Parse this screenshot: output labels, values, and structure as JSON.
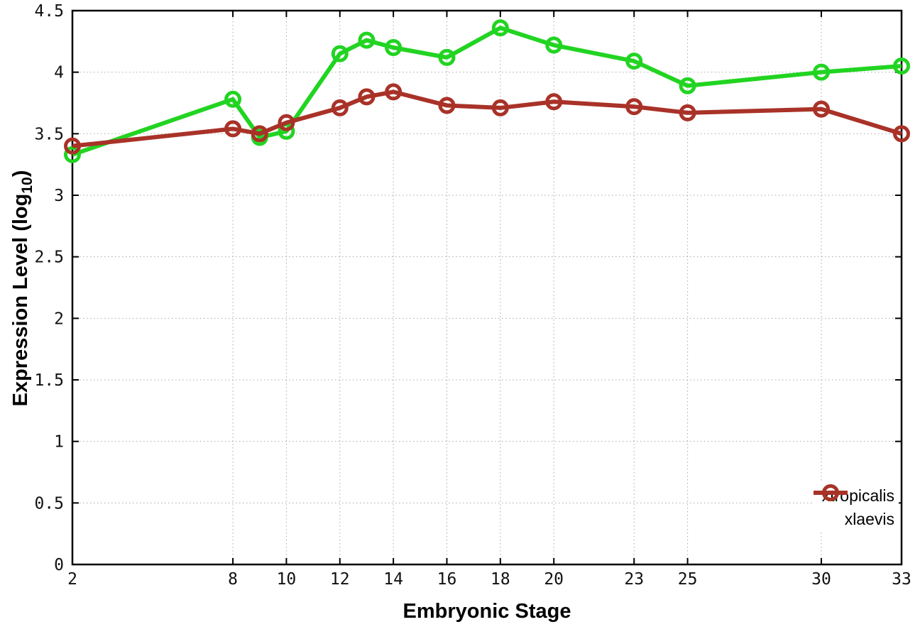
{
  "chart_data": {
    "type": "line",
    "title": "",
    "xlabel": "Embryonic Stage",
    "ylabel": {
      "prefix": "Expression Level (log",
      "sub": "10",
      "suffix": ")"
    },
    "xlim": [
      2,
      33
    ],
    "ylim": [
      0,
      4.5
    ],
    "xticks": [
      2,
      8,
      10,
      12,
      14,
      16,
      18,
      20,
      23,
      25,
      30,
      33
    ],
    "yticks": [
      0,
      0.5,
      1,
      1.5,
      2,
      2.5,
      3,
      3.5,
      4,
      4.5
    ],
    "grid": true,
    "legend_position": "inside-bottom-right",
    "x": [
      2,
      8,
      9,
      10,
      12,
      13,
      14,
      16,
      18,
      20,
      23,
      25,
      30,
      33
    ],
    "series": [
      {
        "name": "xtropicalis",
        "color": "#22d422",
        "values": [
          3.33,
          3.78,
          3.47,
          3.52,
          4.15,
          4.26,
          4.2,
          4.12,
          4.36,
          4.22,
          4.09,
          3.89,
          4.0,
          4.05
        ]
      },
      {
        "name": "xlaevis",
        "color": "#a93228",
        "values": [
          3.4,
          3.54,
          3.5,
          3.59,
          3.71,
          3.8,
          3.84,
          3.73,
          3.71,
          3.76,
          3.72,
          3.67,
          3.7,
          3.5
        ]
      }
    ]
  }
}
